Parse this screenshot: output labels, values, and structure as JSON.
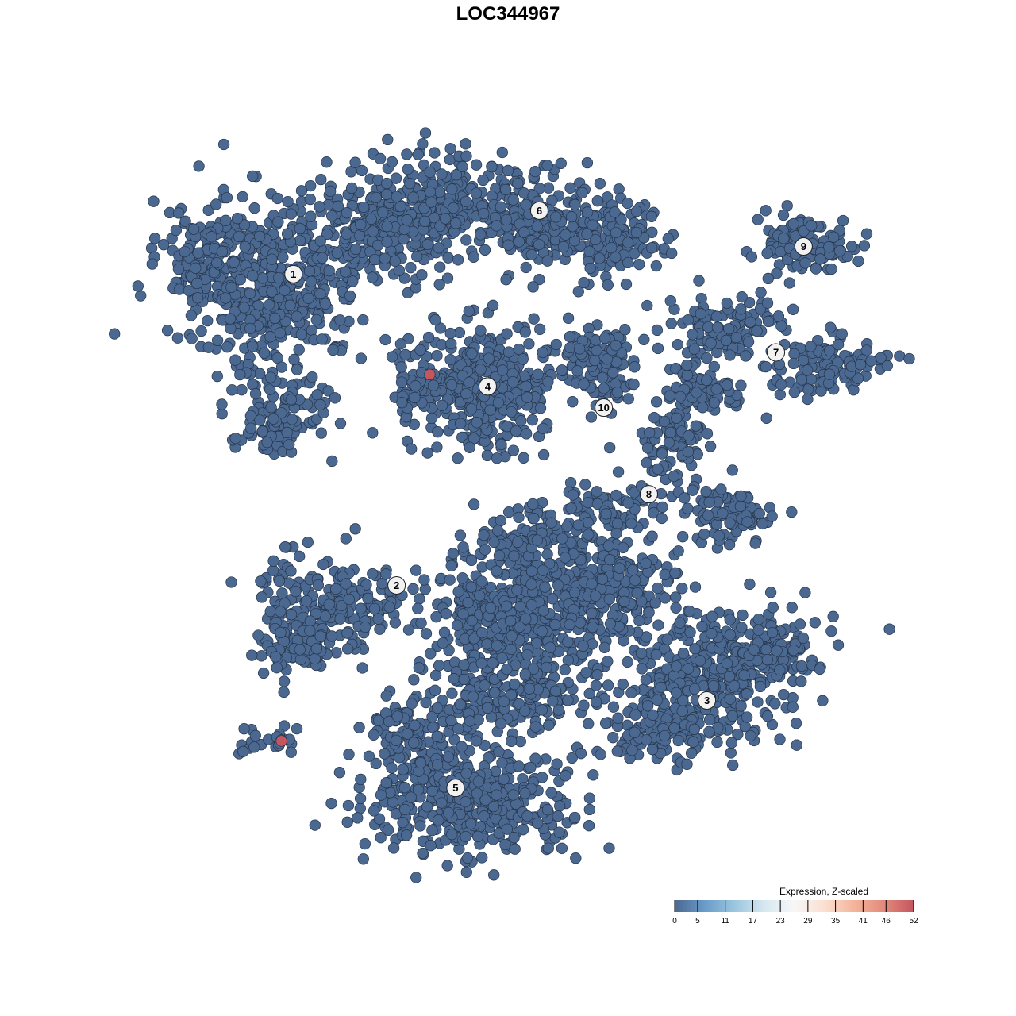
{
  "chart_data": {
    "type": "scatter",
    "title": "LOC344967",
    "xlabel": "",
    "ylabel": "",
    "axes_visible": false,
    "grid": false,
    "point_color_default": "#4a6890",
    "point_color_high": "#c45660",
    "clusters": [
      {
        "label": "1",
        "x": -23.3,
        "y": 25.4
      },
      {
        "label": "2",
        "x": -12.1,
        "y": -8.4
      },
      {
        "label": "3",
        "x": 21.6,
        "y": -20.9
      },
      {
        "label": "4",
        "x": -2.2,
        "y": 13.2
      },
      {
        "label": "5",
        "x": -5.7,
        "y": -30.4
      },
      {
        "label": "6",
        "x": 3.4,
        "y": 32.3
      },
      {
        "label": "7",
        "x": 29.1,
        "y": 16.9
      },
      {
        "label": "8",
        "x": 15.3,
        "y": 1.5
      },
      {
        "label": "9",
        "x": 32.1,
        "y": 28.4
      },
      {
        "label": "10",
        "x": 10.4,
        "y": 10.9
      }
    ],
    "highlighted_points": [
      {
        "x": -8.5,
        "y": 14.5,
        "expression": 52
      },
      {
        "x": -24.6,
        "y": -25.3,
        "expression": 52
      }
    ],
    "legend": {
      "title": "Expression, Z-scaled",
      "placement": "bottom-right",
      "ticks": [
        "0",
        "5",
        "11",
        "17",
        "23",
        "29",
        "35",
        "41",
        "46",
        "52"
      ],
      "colors": [
        "#4a6890",
        "#6a9bc9",
        "#9ac6df",
        "#d6e7f0",
        "#f7f7f7",
        "#fbe0d2",
        "#f4b49b",
        "#e38a7c",
        "#c45660"
      ]
    }
  }
}
